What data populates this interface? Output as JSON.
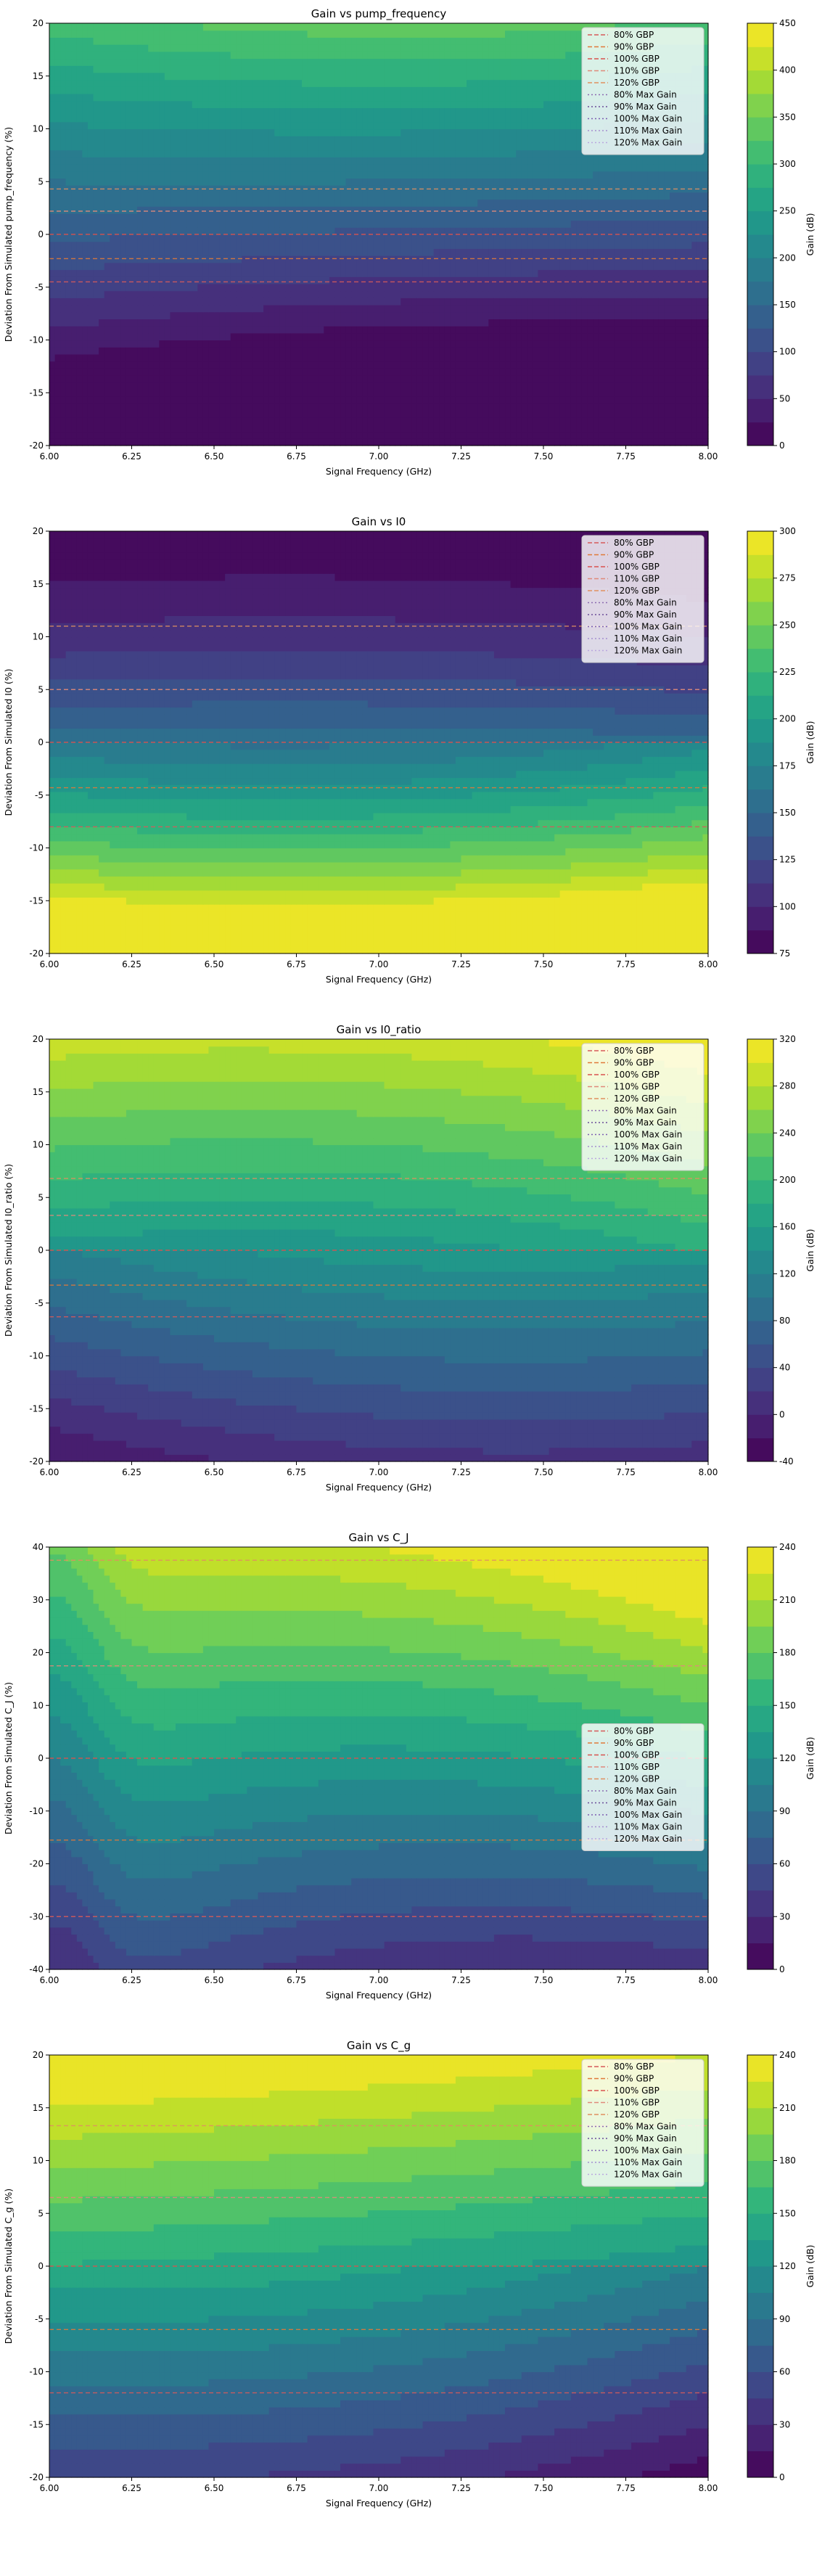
{
  "figure": {
    "xlabel": "Signal Frequency (GHz)",
    "colorbar_label": "Gain (dB)"
  },
  "chart_data": [
    {
      "type": "contour",
      "title": "Gain vs pump_frequency",
      "xlabel": "Signal Frequency (GHz)",
      "ylabel": "Deviation From Simulated pump_frequency (%)",
      "xlim": [
        6.0,
        8.0
      ],
      "ylim": [
        -20,
        20
      ],
      "xticks": [
        "6.00",
        "6.25",
        "6.50",
        "6.75",
        "7.00",
        "7.25",
        "7.50",
        "7.75",
        "8.00"
      ],
      "yticks": [
        "-20",
        "-15",
        "-10",
        "-5",
        "0",
        "5",
        "10",
        "15",
        "20"
      ],
      "colorbar": {
        "label": "Gain (dB)",
        "min": 0,
        "max": 450,
        "ticks": [
          "0",
          "50",
          "100",
          "150",
          "200",
          "250",
          "300",
          "350",
          "400",
          "450"
        ],
        "levels": 18
      },
      "gain_model": "pump",
      "gbp_lines": [
        {
          "name": "80% GBP",
          "y": -4.5,
          "color": "#d65a5a"
        },
        {
          "name": "90% GBP",
          "y": -2.3,
          "color": "#e07a3a"
        },
        {
          "name": "100% GBP",
          "y": 0.0,
          "color": "#d9534f"
        },
        {
          "name": "110% GBP",
          "y": 2.2,
          "color": "#e08a7a"
        },
        {
          "name": "120% GBP",
          "y": 4.3,
          "color": "#e09060"
        }
      ],
      "legend": {
        "position": "upper right",
        "entries": [
          "80% GBP",
          "90% GBP",
          "100% GBP",
          "110% GBP",
          "120% GBP",
          "80% Max Gain",
          "90% Max Gain",
          "100% Max Gain",
          "110% Max Gain",
          "120% Max Gain"
        ]
      }
    },
    {
      "type": "contour",
      "title": "Gain vs I0",
      "xlabel": "Signal Frequency (GHz)",
      "ylabel": "Deviation From Simulated I0 (%)",
      "xlim": [
        6.0,
        8.0
      ],
      "ylim": [
        -20,
        20
      ],
      "xticks": [
        "6.00",
        "6.25",
        "6.50",
        "6.75",
        "7.00",
        "7.25",
        "7.50",
        "7.75",
        "8.00"
      ],
      "yticks": [
        "-20",
        "-15",
        "-10",
        "-5",
        "0",
        "5",
        "10",
        "15",
        "20"
      ],
      "colorbar": {
        "label": "Gain (dB)",
        "min": 75,
        "max": 300,
        "ticks": [
          "75",
          "100",
          "125",
          "150",
          "175",
          "200",
          "225",
          "250",
          "275",
          "300"
        ],
        "levels": 18
      },
      "gain_model": "i0",
      "gbp_lines": [
        {
          "name": "80% GBP",
          "y": -8.0,
          "color": "#d65a5a"
        },
        {
          "name": "90% GBP",
          "y": -4.3,
          "color": "#e07a3a"
        },
        {
          "name": "100% GBP",
          "y": 0.0,
          "color": "#d9534f"
        },
        {
          "name": "110% GBP",
          "y": 5.0,
          "color": "#e08a7a"
        },
        {
          "name": "120% GBP",
          "y": 11.0,
          "color": "#e09060"
        }
      ],
      "legend": {
        "position": "upper right",
        "entries": [
          "80% GBP",
          "90% GBP",
          "100% GBP",
          "110% GBP",
          "120% GBP",
          "80% Max Gain",
          "90% Max Gain",
          "100% Max Gain",
          "110% Max Gain",
          "120% Max Gain"
        ]
      }
    },
    {
      "type": "contour",
      "title": "Gain vs I0_ratio",
      "xlabel": "Signal Frequency (GHz)",
      "ylabel": "Deviation From Simulated I0_ratio (%)",
      "xlim": [
        6.0,
        8.0
      ],
      "ylim": [
        -20,
        20
      ],
      "xticks": [
        "6.00",
        "6.25",
        "6.50",
        "6.75",
        "7.00",
        "7.25",
        "7.50",
        "7.75",
        "8.00"
      ],
      "yticks": [
        "-20",
        "-15",
        "-10",
        "-5",
        "0",
        "5",
        "10",
        "15",
        "20"
      ],
      "colorbar": {
        "label": "Gain (dB)",
        "min": -40,
        "max": 320,
        "ticks": [
          "-40",
          "0",
          "40",
          "80",
          "120",
          "160",
          "200",
          "240",
          "280",
          "320"
        ],
        "levels": 18
      },
      "gain_model": "i0ratio",
      "gbp_lines": [
        {
          "name": "80% GBP",
          "y": -6.3,
          "color": "#d65a5a"
        },
        {
          "name": "90% GBP",
          "y": -3.3,
          "color": "#e07a3a"
        },
        {
          "name": "100% GBP",
          "y": 0.0,
          "color": "#d9534f"
        },
        {
          "name": "110% GBP",
          "y": 3.3,
          "color": "#e08a7a"
        },
        {
          "name": "120% GBP",
          "y": 6.8,
          "color": "#e09060"
        }
      ],
      "legend": {
        "position": "upper right",
        "entries": [
          "80% GBP",
          "90% GBP",
          "100% GBP",
          "110% GBP",
          "120% GBP",
          "80% Max Gain",
          "90% Max Gain",
          "100% Max Gain",
          "110% Max Gain",
          "120% Max Gain"
        ]
      }
    },
    {
      "type": "contour",
      "title": "Gain vs C_J",
      "xlabel": "Signal Frequency (GHz)",
      "ylabel": "Deviation From Simulated C_J (%)",
      "xlim": [
        6.0,
        8.0
      ],
      "ylim": [
        -40,
        40
      ],
      "xticks": [
        "6.00",
        "6.25",
        "6.50",
        "6.75",
        "7.00",
        "7.25",
        "7.50",
        "7.75",
        "8.00"
      ],
      "yticks": [
        "-40",
        "-30",
        "-20",
        "-10",
        "0",
        "10",
        "20",
        "30",
        "40"
      ],
      "colorbar": {
        "label": "Gain (dB)",
        "min": 0,
        "max": 240,
        "ticks": [
          "0",
          "30",
          "60",
          "90",
          "120",
          "150",
          "180",
          "210",
          "240"
        ],
        "levels": 16
      },
      "gain_model": "cj",
      "gbp_lines": [
        {
          "name": "80% GBP",
          "y": -30.0,
          "color": "#d65a5a"
        },
        {
          "name": "90% GBP",
          "y": -15.5,
          "color": "#e07a3a"
        },
        {
          "name": "100% GBP",
          "y": 0.0,
          "color": "#d9534f"
        },
        {
          "name": "110% GBP",
          "y": 17.5,
          "color": "#e08a7a"
        },
        {
          "name": "120% GBP",
          "y": 37.5,
          "color": "#e09060"
        }
      ],
      "legend": {
        "position": "center right",
        "entries": [
          "80% GBP",
          "90% GBP",
          "100% GBP",
          "110% GBP",
          "120% GBP",
          "80% Max Gain",
          "90% Max Gain",
          "100% Max Gain",
          "110% Max Gain",
          "120% Max Gain"
        ]
      }
    },
    {
      "type": "contour",
      "title": "Gain vs C_g",
      "xlabel": "Signal Frequency (GHz)",
      "ylabel": "Deviation From Simulated C_g (%)",
      "xlim": [
        6.0,
        8.0
      ],
      "ylim": [
        -20,
        20
      ],
      "xticks": [
        "6.00",
        "6.25",
        "6.50",
        "6.75",
        "7.00",
        "7.25",
        "7.50",
        "7.75",
        "8.00"
      ],
      "yticks": [
        "-20",
        "-15",
        "-10",
        "-5",
        "0",
        "5",
        "10",
        "15",
        "20"
      ],
      "colorbar": {
        "label": "Gain (dB)",
        "min": 0,
        "max": 240,
        "ticks": [
          "0",
          "30",
          "60",
          "90",
          "120",
          "150",
          "180",
          "210",
          "240"
        ],
        "levels": 16
      },
      "gain_model": "cg",
      "gbp_lines": [
        {
          "name": "80% GBP",
          "y": -12.0,
          "color": "#d65a5a"
        },
        {
          "name": "90% GBP",
          "y": -6.0,
          "color": "#e07a3a"
        },
        {
          "name": "100% GBP",
          "y": 0.0,
          "color": "#d9534f"
        },
        {
          "name": "110% GBP",
          "y": 6.5,
          "color": "#e08a7a"
        },
        {
          "name": "120% GBP",
          "y": 13.3,
          "color": "#e09060"
        }
      ],
      "legend": {
        "position": "upper right",
        "entries": [
          "80% GBP",
          "90% GBP",
          "100% GBP",
          "110% GBP",
          "120% GBP",
          "80% Max Gain",
          "90% Max Gain",
          "100% Max Gain",
          "110% Max Gain",
          "120% Max Gain"
        ]
      }
    }
  ]
}
